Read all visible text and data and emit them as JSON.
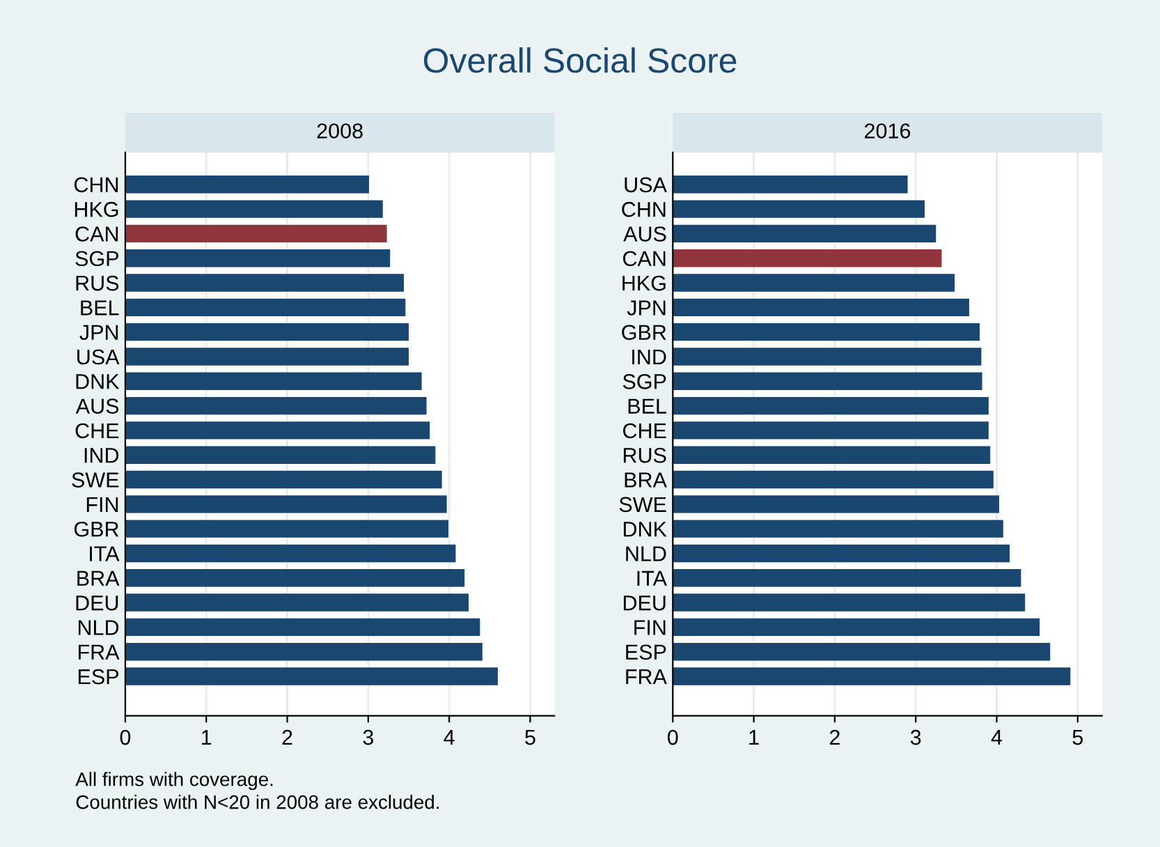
{
  "chart_data": [
    {
      "type": "other",
      "title": "Overall Social Score",
      "annotations": [
        "All firms with coverage.",
        "Countries with N<20 in 2008 are excluded."
      ]
    },
    {
      "type": "bar",
      "orientation": "horizontal",
      "title": "2008",
      "categories": [
        "CHN",
        "HKG",
        "CAN",
        "SGP",
        "RUS",
        "BEL",
        "JPN",
        "USA",
        "DNK",
        "AUS",
        "CHE",
        "IND",
        "SWE",
        "FIN",
        "GBR",
        "ITA",
        "BRA",
        "DEU",
        "NLD",
        "FRA",
        "ESP"
      ],
      "values": [
        3.01,
        3.18,
        3.23,
        3.27,
        3.44,
        3.46,
        3.5,
        3.5,
        3.66,
        3.72,
        3.76,
        3.83,
        3.91,
        3.97,
        3.99,
        4.08,
        4.19,
        4.24,
        4.38,
        4.41,
        4.6
      ],
      "colors": [
        "#1a476f",
        "#1a476f",
        "#90353b",
        "#1a476f",
        "#1a476f",
        "#1a476f",
        "#1a476f",
        "#1a476f",
        "#1a476f",
        "#1a476f",
        "#1a476f",
        "#1a476f",
        "#1a476f",
        "#1a476f",
        "#1a476f",
        "#1a476f",
        "#1a476f",
        "#1a476f",
        "#1a476f",
        "#1a476f",
        "#1a476f"
      ],
      "xlim": [
        0,
        5.3
      ],
      "xticks": [
        0,
        1,
        2,
        3,
        4,
        5
      ],
      "grid": "x"
    },
    {
      "type": "bar",
      "orientation": "horizontal",
      "title": "2016",
      "categories": [
        "USA",
        "CHN",
        "AUS",
        "CAN",
        "HKG",
        "JPN",
        "GBR",
        "IND",
        "SGP",
        "BEL",
        "CHE",
        "RUS",
        "BRA",
        "SWE",
        "DNK",
        "NLD",
        "ITA",
        "DEU",
        "FIN",
        "ESP",
        "FRA"
      ],
      "values": [
        2.9,
        3.11,
        3.25,
        3.32,
        3.48,
        3.66,
        3.79,
        3.81,
        3.82,
        3.9,
        3.9,
        3.92,
        3.96,
        4.03,
        4.08,
        4.16,
        4.3,
        4.35,
        4.53,
        4.66,
        4.91
      ],
      "colors": [
        "#1a476f",
        "#1a476f",
        "#1a476f",
        "#90353b",
        "#1a476f",
        "#1a476f",
        "#1a476f",
        "#1a476f",
        "#1a476f",
        "#1a476f",
        "#1a476f",
        "#1a476f",
        "#1a476f",
        "#1a476f",
        "#1a476f",
        "#1a476f",
        "#1a476f",
        "#1a476f",
        "#1a476f",
        "#1a476f",
        "#1a476f"
      ],
      "xlim": [
        0,
        5.3
      ],
      "xticks": [
        0,
        1,
        2,
        3,
        4,
        5
      ],
      "grid": "x"
    }
  ]
}
